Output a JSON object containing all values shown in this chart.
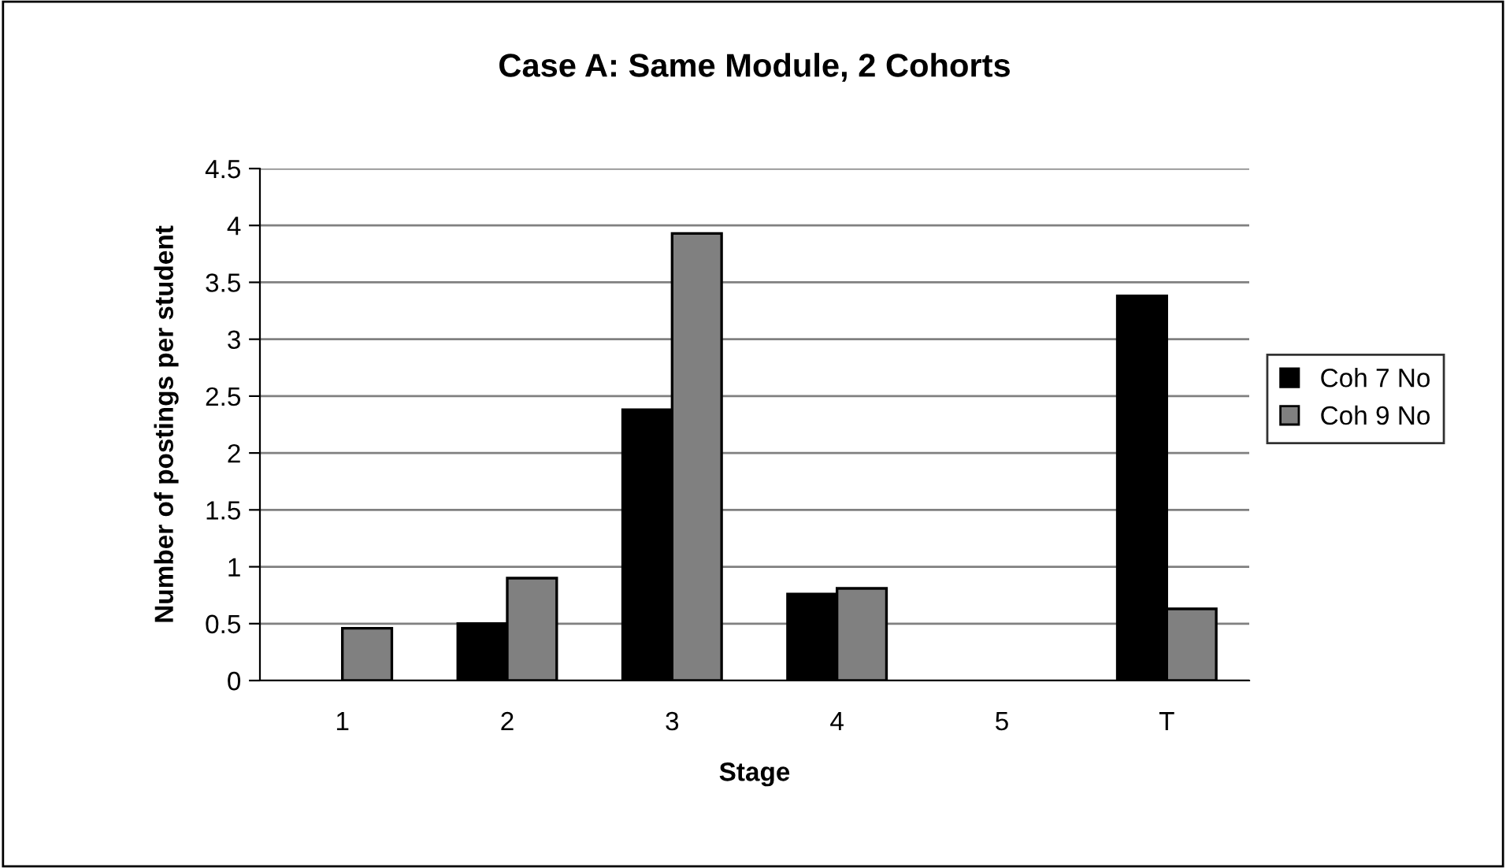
{
  "chart_data": {
    "type": "bar",
    "title": "Case A: Same Module, 2 Cohorts",
    "xlabel": "Stage",
    "ylabel": "Number of postings per student",
    "categories": [
      "1",
      "2",
      "3",
      "4",
      "5",
      "T"
    ],
    "series": [
      {
        "name": "Coh 7 No",
        "color": "#000000",
        "values": [
          null,
          0.5,
          2.38,
          0.76,
          null,
          3.38
        ]
      },
      {
        "name": "Coh 9 No",
        "color": "#808080",
        "values": [
          0.46,
          0.9,
          3.93,
          0.81,
          null,
          0.63
        ]
      }
    ],
    "ylim": [
      0,
      4.5
    ],
    "yticks": [
      0,
      0.5,
      1,
      1.5,
      2,
      2.5,
      3,
      3.5,
      4,
      4.5
    ],
    "grid": "y",
    "legend": "right"
  }
}
